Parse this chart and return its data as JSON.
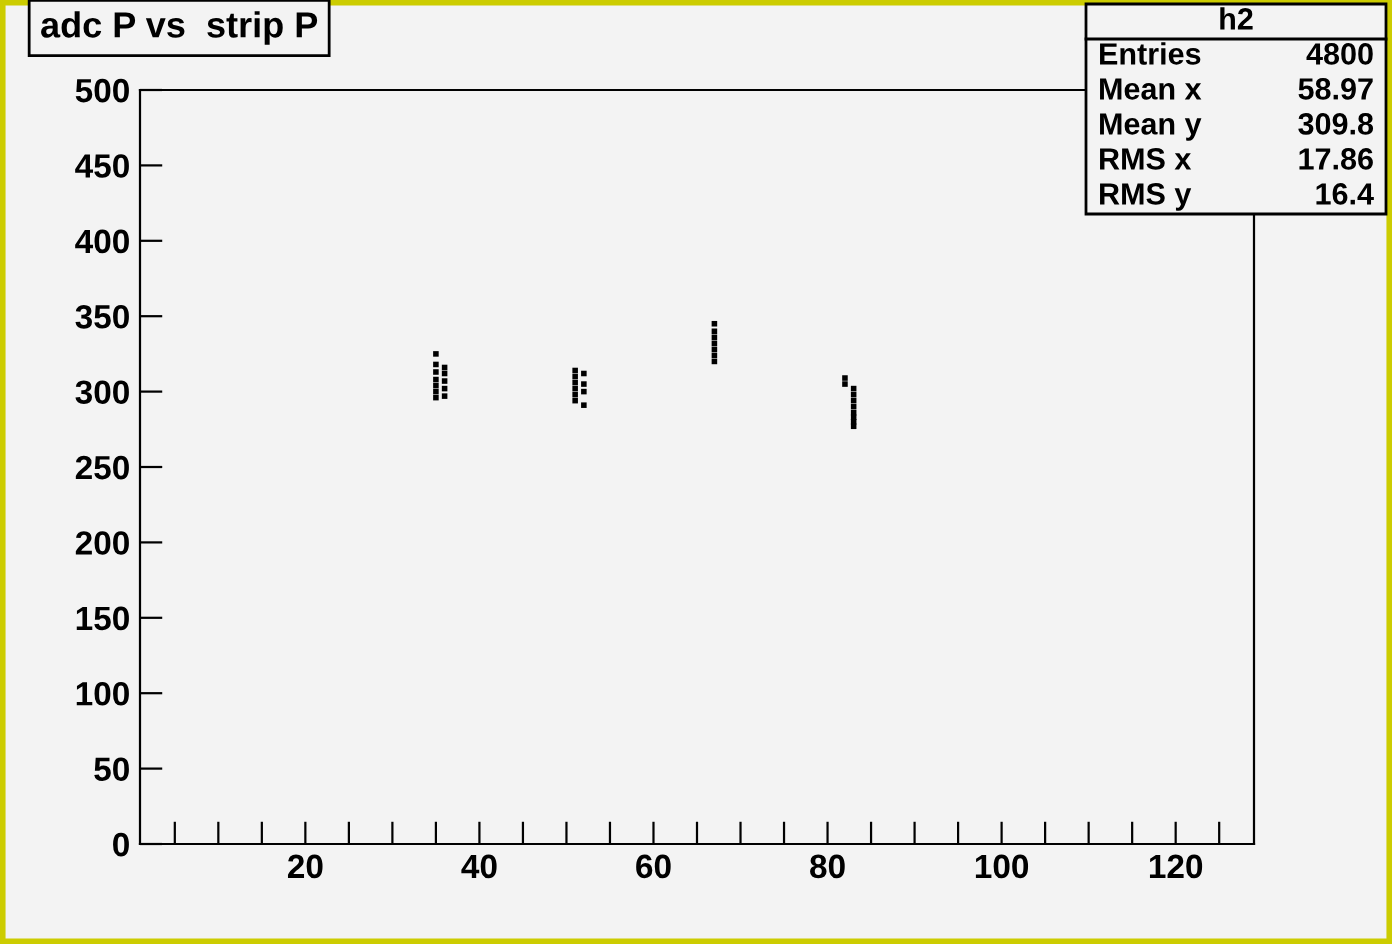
{
  "chart_data": {
    "type": "scatter",
    "title": "adc P vs  strip P",
    "x": [
      35,
      35,
      35,
      35,
      35,
      35,
      36,
      36,
      36,
      36,
      36,
      35,
      51,
      51,
      51,
      51,
      51,
      51,
      52,
      52,
      52,
      52,
      67,
      67,
      67,
      67,
      67,
      67,
      67,
      82,
      82,
      83,
      83,
      83,
      83,
      83,
      83,
      83,
      83
    ],
    "series": [
      {
        "color": "#000000",
        "values": [
          325,
          318,
          313,
          308,
          304,
          300,
          316,
          312,
          307,
          302,
          297,
          296,
          314,
          310,
          306,
          302,
          298,
          294,
          312,
          305,
          300,
          291,
          345,
          340,
          336,
          332,
          328,
          324,
          320,
          309,
          305,
          302,
          298,
          294,
          290,
          286,
          283,
          280,
          277
        ]
      }
    ],
    "xlim": [
      1,
      129
    ],
    "xticks": [
      {
        "value": 5,
        "label": null
      },
      {
        "value": 10,
        "label": null
      },
      {
        "value": 15,
        "label": null
      },
      20,
      {
        "value": 25,
        "label": null
      },
      {
        "value": 30,
        "label": null
      },
      {
        "value": 35,
        "label": null
      },
      40,
      {
        "value": 45,
        "label": null
      },
      {
        "value": 50,
        "label": null
      },
      {
        "value": 55,
        "label": null
      },
      60,
      {
        "value": 65,
        "label": null
      },
      {
        "value": 70,
        "label": null
      },
      {
        "value": 75,
        "label": null
      },
      80,
      {
        "value": 85,
        "label": null
      },
      {
        "value": 90,
        "label": null
      },
      {
        "value": 95,
        "label": null
      },
      100,
      {
        "value": 105,
        "label": null
      },
      {
        "value": 110,
        "label": null
      },
      {
        "value": 115,
        "label": null
      },
      120,
      {
        "value": 125,
        "label": null
      }
    ],
    "ylim": [
      0,
      500
    ],
    "yticks": [
      0,
      50,
      100,
      150,
      200,
      250,
      300,
      350,
      400,
      450,
      500
    ],
    "marker": "square",
    "grid": false,
    "annotations": [
      "h2",
      "Entries",
      "4800",
      "Mean x",
      "58.97",
      "Mean y",
      "309.8",
      "RMS x",
      "17.86",
      "RMS y",
      "16.4"
    ]
  }
}
